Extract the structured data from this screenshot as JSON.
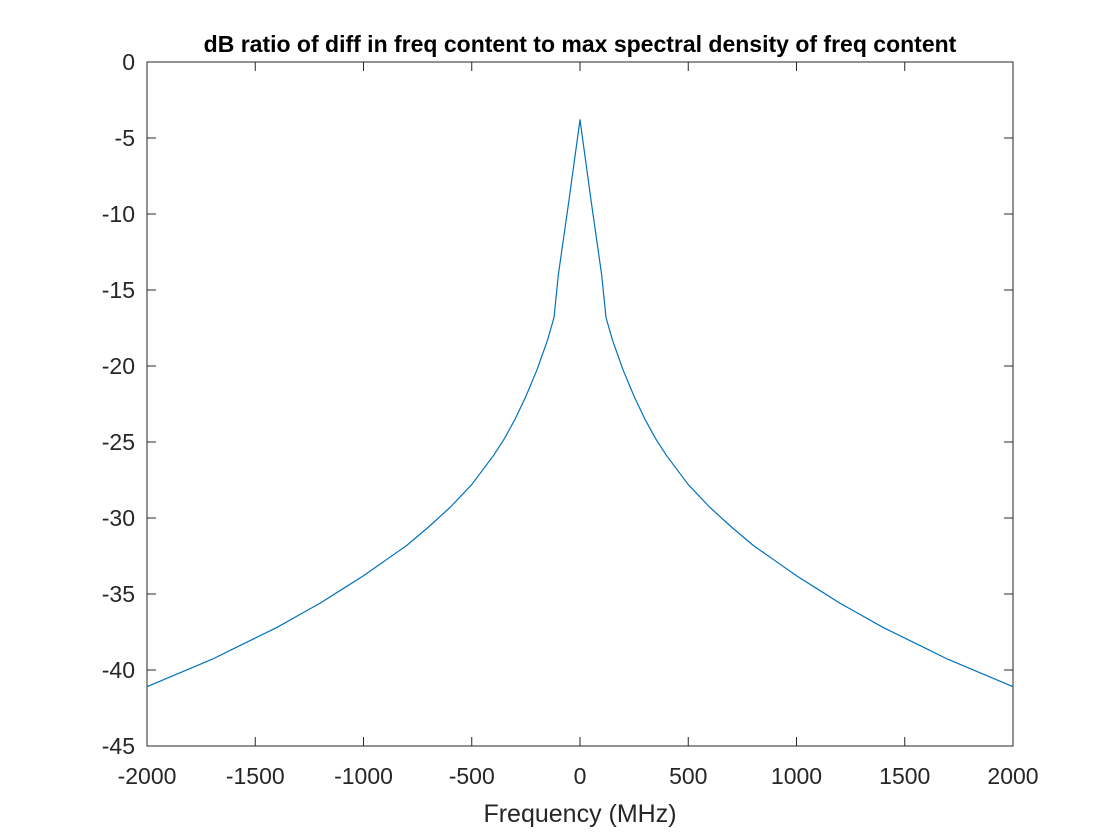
{
  "chart_data": {
    "type": "line",
    "title": "dB ratio of diff in freq content to max spectral density of freq content",
    "xlabel": "Frequency (MHz)",
    "ylabel": "",
    "xlim": [
      -2000,
      2000
    ],
    "ylim": [
      -45,
      0
    ],
    "xticks": [
      -2000,
      -1500,
      -1000,
      -500,
      0,
      500,
      1000,
      1500,
      2000
    ],
    "xtick_labels": [
      "-2000",
      "-1500",
      "-1000",
      "-500",
      "0",
      "500",
      "1000",
      "1500",
      "2000"
    ],
    "yticks": [
      0,
      -5,
      -10,
      -15,
      -20,
      -25,
      -30,
      -35,
      -40,
      -45
    ],
    "ytick_labels": [
      "0",
      "-5",
      "-10",
      "-15",
      "-20",
      "-25",
      "-30",
      "-35",
      "-40",
      "-45"
    ],
    "grid": false,
    "box": true,
    "series": [
      {
        "color": "#0072BD",
        "x": [
          -2000,
          -1900,
          -1800,
          -1700,
          -1600,
          -1500,
          -1400,
          -1300,
          -1200,
          -1100,
          -1000,
          -900,
          -800,
          -700,
          -600,
          -500,
          -400,
          -350,
          -300,
          -250,
          -200,
          -150,
          -120,
          -100,
          -50,
          0,
          50,
          100,
          120,
          150,
          200,
          250,
          300,
          350,
          400,
          500,
          600,
          700,
          800,
          900,
          1000,
          1100,
          1200,
          1300,
          1400,
          1500,
          1600,
          1700,
          1800,
          1900,
          2000
        ],
        "y": [
          -41.1,
          -40.5,
          -39.9,
          -39.3,
          -38.6,
          -37.9,
          -37.2,
          -36.4,
          -35.6,
          -34.7,
          -33.8,
          -32.8,
          -31.8,
          -30.6,
          -29.3,
          -27.8,
          -25.9,
          -24.8,
          -23.5,
          -22.0,
          -20.3,
          -18.3,
          -16.8,
          -14.0,
          -9.0,
          -3.8,
          -9.0,
          -14.0,
          -16.8,
          -18.3,
          -20.3,
          -22.0,
          -23.5,
          -24.8,
          -25.9,
          -27.8,
          -29.3,
          -30.6,
          -31.8,
          -32.8,
          -33.8,
          -34.7,
          -35.6,
          -36.4,
          -37.2,
          -37.9,
          -38.6,
          -39.3,
          -39.9,
          -40.5,
          -41.1
        ]
      }
    ]
  }
}
